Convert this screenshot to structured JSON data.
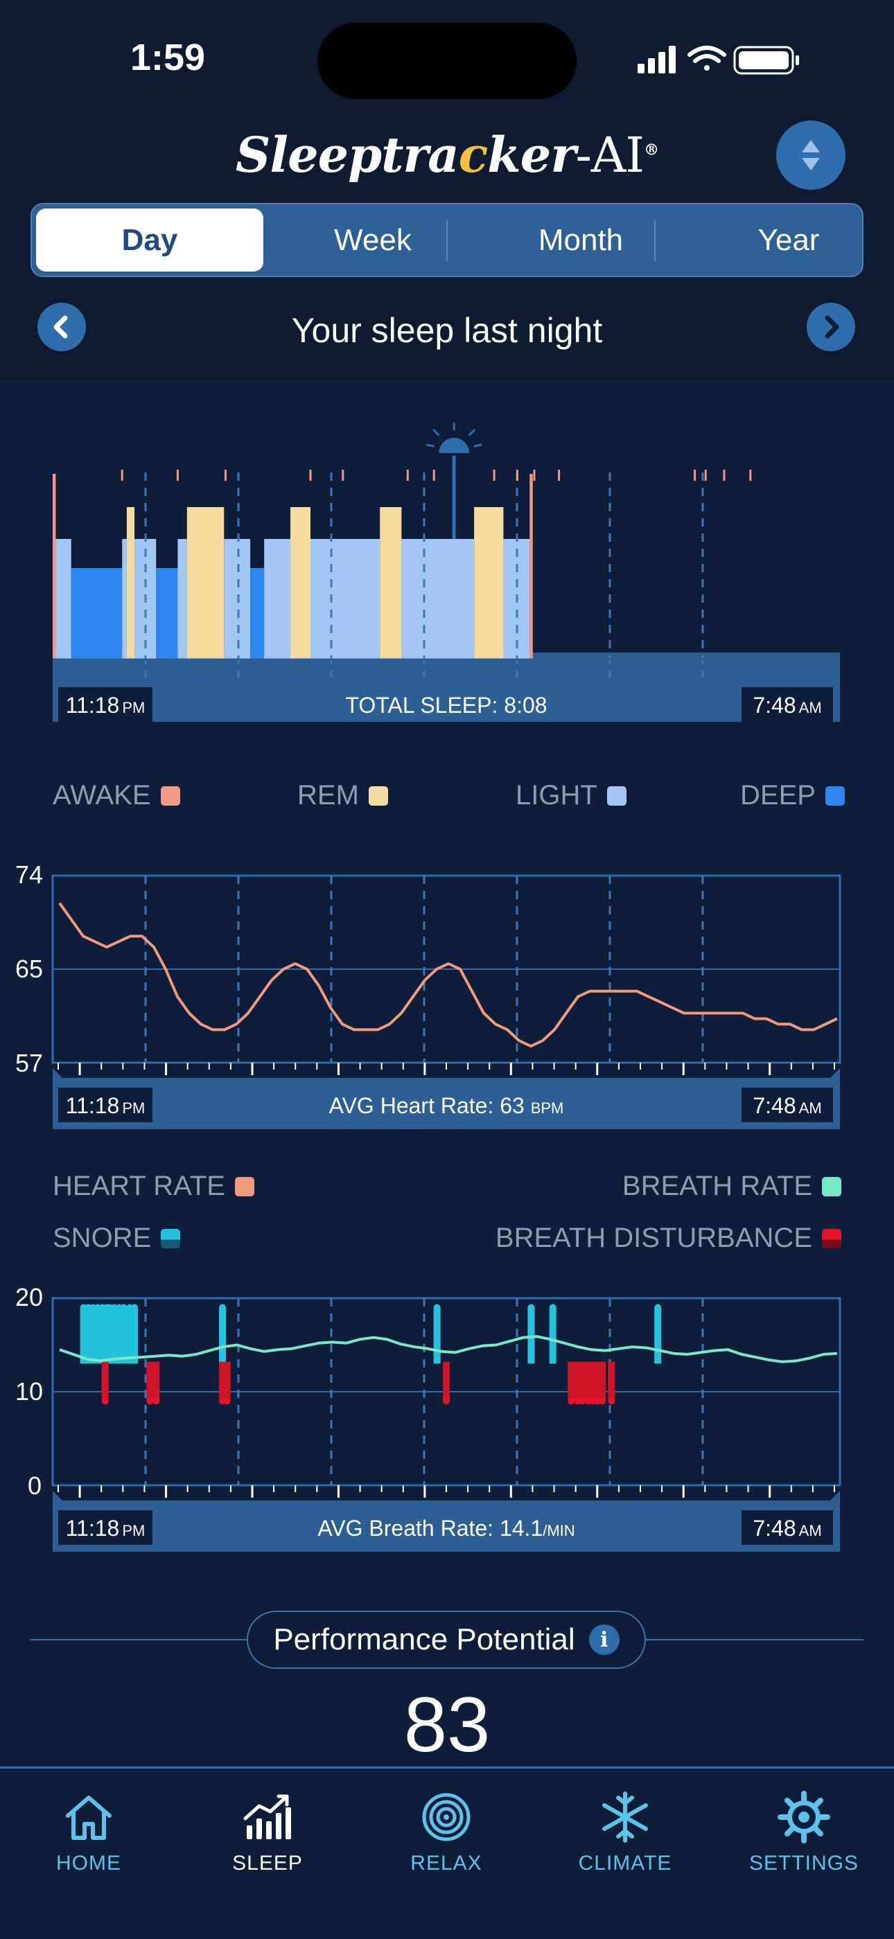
{
  "status_bar": {
    "time": "1:59"
  },
  "app": {
    "logo_text_1": "Sleeptra",
    "logo_moon": "c",
    "logo_text_2": "ker",
    "logo_suffix": "-AI",
    "logo_reg": "®"
  },
  "period_tabs": [
    {
      "label": "Day",
      "active": true
    },
    {
      "label": "Week",
      "active": false
    },
    {
      "label": "Month",
      "active": false
    },
    {
      "label": "Year",
      "active": false
    }
  ],
  "nav": {
    "title": "Your sleep last night",
    "prev_icon": "chevron-left-icon",
    "next_icon": "chevron-right-icon"
  },
  "times": {
    "start": "11:18",
    "start_ampm": "PM",
    "end": "7:48",
    "end_ampm": "AM"
  },
  "hypnogram": {
    "caption": "TOTAL SLEEP: 8:08",
    "colors": {
      "awake": "#f29a85",
      "rem": "#f4dca0",
      "light": "#a3c6f5",
      "deep": "#2f86ee"
    },
    "stages": [
      {
        "stage": "awake",
        "minutes": 2
      },
      {
        "stage": "light",
        "minutes": 10
      },
      {
        "stage": "deep",
        "minutes": 33
      },
      {
        "stage": "light",
        "minutes": 3
      },
      {
        "stage": "rem",
        "minutes": 5
      },
      {
        "stage": "light",
        "minutes": 14
      },
      {
        "stage": "deep",
        "minutes": 14
      },
      {
        "stage": "light",
        "minutes": 6
      },
      {
        "stage": "rem",
        "minutes": 24
      },
      {
        "stage": "light",
        "minutes": 17
      },
      {
        "stage": "deep",
        "minutes": 9
      },
      {
        "stage": "light",
        "minutes": 17
      },
      {
        "stage": "rem",
        "minutes": 13
      },
      {
        "stage": "light",
        "minutes": 45
      },
      {
        "stage": "rem",
        "minutes": 14
      },
      {
        "stage": "light",
        "minutes": 47
      },
      {
        "stage": "rem",
        "minutes": 19
      },
      {
        "stage": "light",
        "minutes": 17
      },
      {
        "stage": "awake",
        "minutes": 2
      }
    ],
    "wake_marks_minutes": [
      45,
      81,
      112,
      167,
      188,
      230,
      247,
      286,
      301,
      312,
      328,
      416,
      423,
      435,
      452
    ],
    "alarm_minute": 260
  },
  "legend_stages": [
    {
      "label": "AWAKE",
      "color": "#f29a85"
    },
    {
      "label": "REM",
      "color": "#f4dca0"
    },
    {
      "label": "LIGHT",
      "color": "#a3c6f5"
    },
    {
      "label": "DEEP",
      "color": "#2f86ee"
    }
  ],
  "heart_chart": {
    "y_ticks": [
      "74",
      "65",
      "57"
    ],
    "caption_prefix": "AVG Heart Rate: 63",
    "caption_unit": "BPM",
    "color": "#f29a7c",
    "values": [
      71.5,
      70,
      68.5,
      68,
      67.5,
      68,
      68.5,
      68.5,
      67.5,
      65.5,
      63,
      61.5,
      60.5,
      60,
      60,
      60.5,
      61.5,
      63,
      64.5,
      65.5,
      66,
      65.5,
      64,
      62,
      60.5,
      60,
      60,
      60,
      60.5,
      61.5,
      63,
      64.5,
      65.5,
      66,
      65.5,
      63.5,
      61.5,
      60.5,
      60,
      59,
      58.5,
      59,
      60,
      61.5,
      63,
      63.5,
      63.5,
      63.5,
      63.5,
      63.5,
      63,
      62.5,
      62,
      61.5,
      61.5,
      61.5,
      61.5,
      61.5,
      61.5,
      61,
      61,
      60.5,
      60.5,
      60,
      60,
      60.5,
      61
    ]
  },
  "legend_vitals": [
    {
      "label": "HEART RATE",
      "color": "#f29a7c"
    },
    {
      "label": "BREATH RATE",
      "color": "#78e8c8"
    },
    {
      "label": "SNORE",
      "color": "#23c3dd"
    },
    {
      "label": "BREATH DISTURBANCE",
      "color": "#e5142b"
    }
  ],
  "breath_chart": {
    "y_ticks": [
      "20",
      "10",
      "0"
    ],
    "caption_prefix": "AVG Breath Rate: 14.1",
    "caption_unit": "/MIN",
    "color": "#78e8c8",
    "values": [
      14.5,
      14,
      13.5,
      13.3,
      13.5,
      13.6,
      13.7,
      13.8,
      13.9,
      13.8,
      14,
      14.4,
      14.8,
      15,
      14.6,
      14.3,
      14.5,
      14.6,
      14.9,
      15.2,
      15.3,
      15.2,
      15.6,
      15.8,
      15.6,
      15.1,
      14.8,
      14.6,
      14.3,
      14.2,
      14.6,
      14.9,
      15,
      15.4,
      15.8,
      15.9,
      15.6,
      15.2,
      14.8,
      14.5,
      14.4,
      14.6,
      14.8,
      14.7,
      14.4,
      14.1,
      14,
      14.2,
      14.4,
      14.5,
      14,
      13.7,
      13.4,
      13.2,
      13.3,
      13.6,
      14,
      14.1
    ],
    "snore_minutes": [
      20,
      23,
      26,
      29,
      32,
      35,
      37,
      40,
      43,
      46,
      50,
      53,
      110,
      249,
      310,
      324,
      392
    ],
    "disturbance_minutes": [
      34,
      63,
      67,
      110,
      113,
      255,
      336,
      340,
      343,
      347,
      350,
      353,
      356,
      362
    ]
  },
  "performance": {
    "label": "Performance Potential",
    "score": "83",
    "info_icon": "info-icon"
  },
  "tabbar": [
    {
      "label": "HOME",
      "icon": "home-icon",
      "active": false
    },
    {
      "label": "SLEEP",
      "icon": "sleep-chart-icon",
      "active": true
    },
    {
      "label": "RELAX",
      "icon": "relax-icon",
      "active": false
    },
    {
      "label": "CLIMATE",
      "icon": "snowflake-icon",
      "active": false
    },
    {
      "label": "SETTINGS",
      "icon": "gear-icon",
      "active": false
    }
  ]
}
